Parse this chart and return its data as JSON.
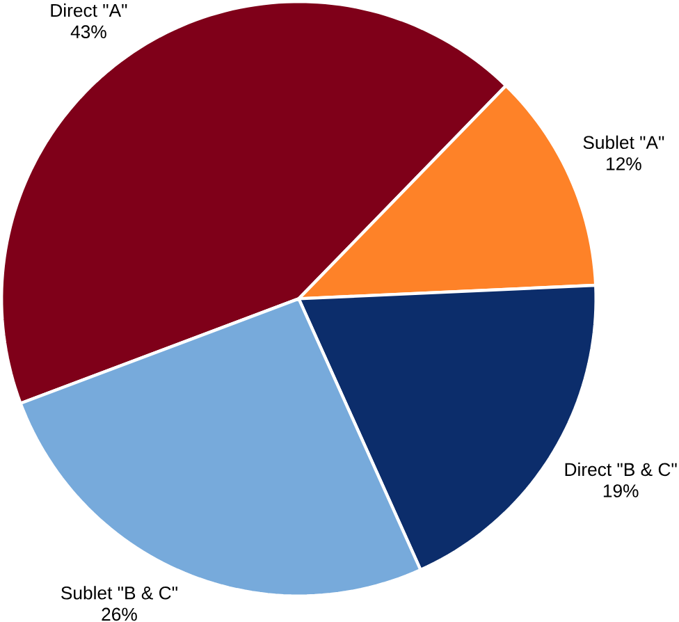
{
  "chart_data": {
    "type": "pie",
    "categories": [
      "Direct \"A\"",
      "Sublet \"A\"",
      "Direct \"B & C\"",
      "Sublet \"B & C\""
    ],
    "values": [
      43,
      12,
      19,
      26
    ],
    "value_labels": [
      "43%",
      "12%",
      "19%",
      "26%"
    ],
    "colors": [
      "#7f0019",
      "#fe8228",
      "#0c2d6b",
      "#77aadb"
    ]
  }
}
